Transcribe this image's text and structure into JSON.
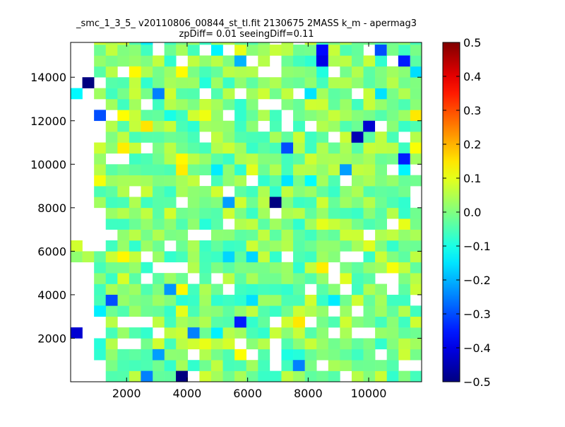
{
  "chart_data": {
    "type": "heatmap",
    "title": "_smc_1_3_5_ v20110806_00844_st_tl.fit 2130675 2MASS k_m - apermag3",
    "subtitle": "zpDiff= 0.01 seeingDiff=0.11",
    "xlabel": "",
    "ylabel": "",
    "xlim": [
      150,
      11750
    ],
    "ylim": [
      0,
      15600
    ],
    "x_ticks": [
      2000,
      4000,
      6000,
      8000,
      10000
    ],
    "y_ticks": [
      2000,
      4000,
      6000,
      8000,
      10000,
      12000,
      14000
    ],
    "x_tick_labels": [
      "2000",
      "4000",
      "6000",
      "8000",
      "10000"
    ],
    "y_tick_labels": [
      "2000",
      "4000",
      "6000",
      "8000",
      "10000",
      "12000",
      "14000"
    ],
    "colorbar": {
      "range": [
        -0.5,
        0.5
      ],
      "ticks": [
        -0.5,
        -0.4,
        -0.3,
        -0.2,
        -0.1,
        0.0,
        0.1,
        0.2,
        0.3,
        0.4,
        0.5
      ],
      "tick_labels": [
        "−0.5",
        "−0.4",
        "−0.3",
        "−0.2",
        "−0.1",
        "0.0",
        "0.1",
        "0.2",
        "0.3",
        "0.4",
        "0.5"
      ],
      "colormap": "jet"
    },
    "grid": false,
    "cell_size": [
      387,
      500
    ],
    "cells": [
      {
        "x": 343,
        "y": 2250,
        "v": -0.42
      },
      {
        "x": 343,
        "y": 6250,
        "v": 0.08
      },
      {
        "x": 343,
        "y": 13250,
        "v": -0.13
      },
      {
        "x": 730,
        "y": 13750,
        "v": -0.5
      },
      {
        "x": 1117,
        "y": 3250,
        "v": -0.14
      },
      {
        "x": 1117,
        "y": 12250,
        "v": -0.3
      },
      {
        "x": 1503,
        "y": 3750,
        "v": -0.3
      },
      {
        "x": 2277,
        "y": 14250,
        "v": 0.13
      },
      {
        "x": 2663,
        "y": 11750,
        "v": 0.15
      },
      {
        "x": 2663,
        "y": 250,
        "v": -0.25
      },
      {
        "x": 3050,
        "y": 13250,
        "v": -0.25
      },
      {
        "x": 3050,
        "y": 1250,
        "v": -0.22
      },
      {
        "x": 3437,
        "y": 4250,
        "v": -0.23
      },
      {
        "x": 3823,
        "y": 3250,
        "v": 0.1
      },
      {
        "x": 3823,
        "y": 250,
        "v": -0.5
      },
      {
        "x": 4210,
        "y": 2250,
        "v": -0.25
      },
      {
        "x": 5370,
        "y": 8250,
        "v": -0.22
      },
      {
        "x": 5757,
        "y": 14750,
        "v": -0.2
      },
      {
        "x": 5757,
        "y": 2750,
        "v": -0.35
      },
      {
        "x": 6917,
        "y": 8250,
        "v": -0.5
      },
      {
        "x": 7303,
        "y": 10750,
        "v": -0.3
      },
      {
        "x": 7690,
        "y": 750,
        "v": -0.25
      },
      {
        "x": 8077,
        "y": 13250,
        "v": -0.15
      },
      {
        "x": 8463,
        "y": 15250,
        "v": -0.37
      },
      {
        "x": 8463,
        "y": 14750,
        "v": -0.4
      },
      {
        "x": 9237,
        "y": 9750,
        "v": -0.22
      },
      {
        "x": 9623,
        "y": 11250,
        "v": -0.45
      },
      {
        "x": 10010,
        "y": 11750,
        "v": -0.42
      },
      {
        "x": 10397,
        "y": 15250,
        "v": -0.3
      },
      {
        "x": 11170,
        "y": 14750,
        "v": -0.35
      },
      {
        "x": 11170,
        "y": 10250,
        "v": -0.35
      },
      {
        "x": 11557,
        "y": 10750,
        "v": 0.12
      }
    ]
  }
}
